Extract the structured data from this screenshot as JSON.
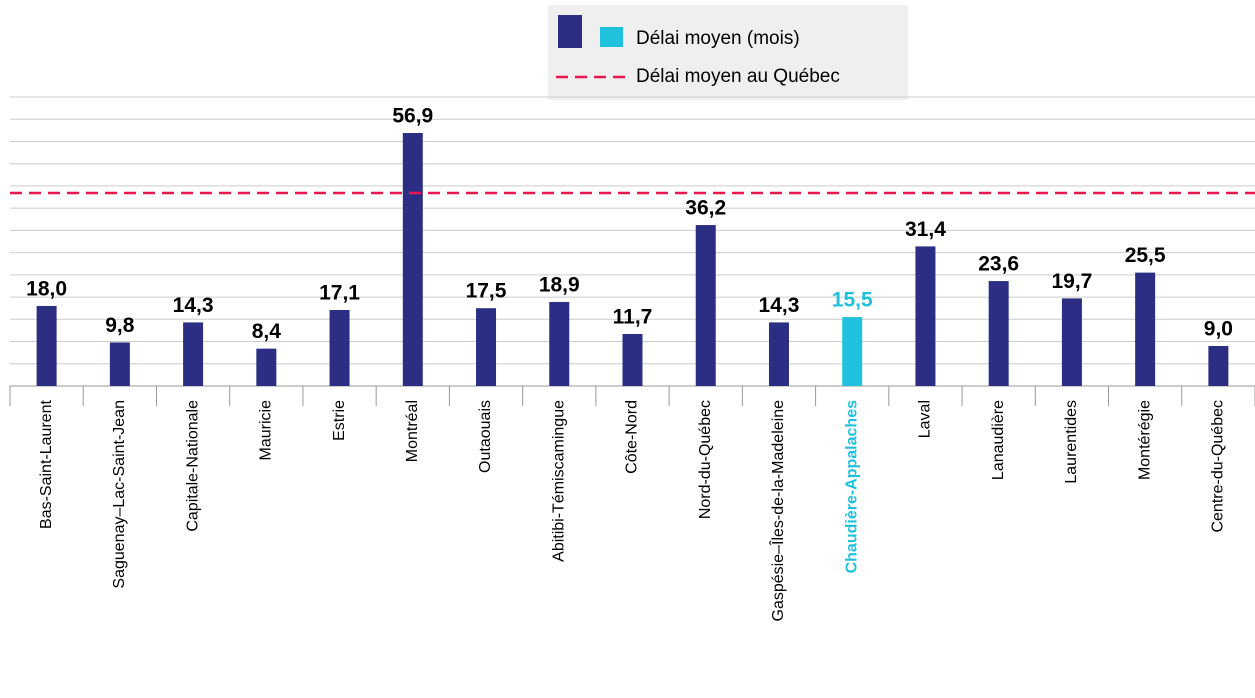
{
  "chart_data": {
    "type": "bar",
    "categories": [
      "Bas-Saint-Laurent",
      "Saguenay–Lac-Saint-Jean",
      "Capitale-Nationale",
      "Mauricie",
      "Estrie",
      "Montréal",
      "Outaouais",
      "Abitibi-Témiscamingue",
      "Côte-Nord",
      "Nord-du-Québec",
      "Gaspésie–Îles-de-la-Madeleine",
      "Chaudière-Appalaches",
      "Laval",
      "Lanaudière",
      "Laurentides",
      "Montérégie",
      "Centre-du-Québec"
    ],
    "series": [
      {
        "name": "Délai moyen (mois)",
        "values": [
          18.0,
          9.8,
          14.3,
          8.4,
          17.1,
          56.9,
          17.5,
          18.9,
          11.7,
          36.2,
          14.3,
          15.5,
          31.4,
          23.6,
          19.7,
          25.5,
          9.0
        ],
        "value_labels": [
          "18,0",
          "9,8",
          "14,3",
          "8,4",
          "17,1",
          "56,9",
          "17,5",
          "18,9",
          "11,7",
          "36,2",
          "14,3",
          "15,5",
          "31,4",
          "23,6",
          "19,7",
          "25,5",
          "9,0"
        ],
        "colors": [
          "#2b2e83",
          "#2b2e83",
          "#2b2e83",
          "#2b2e83",
          "#2b2e83",
          "#2b2e83",
          "#2b2e83",
          "#2b2e83",
          "#2b2e83",
          "#2b2e83",
          "#2b2e83",
          "#1fc1dc",
          "#2b2e83",
          "#2b2e83",
          "#2b2e83",
          "#2b2e83",
          "#2b2e83"
        ]
      }
    ],
    "legend_swatches": [
      "#2b2e83",
      "#1fc1dc"
    ],
    "reference_line": {
      "name": "Délai moyen au Québec",
      "value": 43.4,
      "color": "#e8174f"
    },
    "ylim": [
      0,
      65
    ],
    "yticks": [
      0,
      5,
      10,
      15,
      20,
      25,
      30,
      35,
      40,
      45,
      50,
      55,
      60,
      65
    ],
    "grid": true
  }
}
